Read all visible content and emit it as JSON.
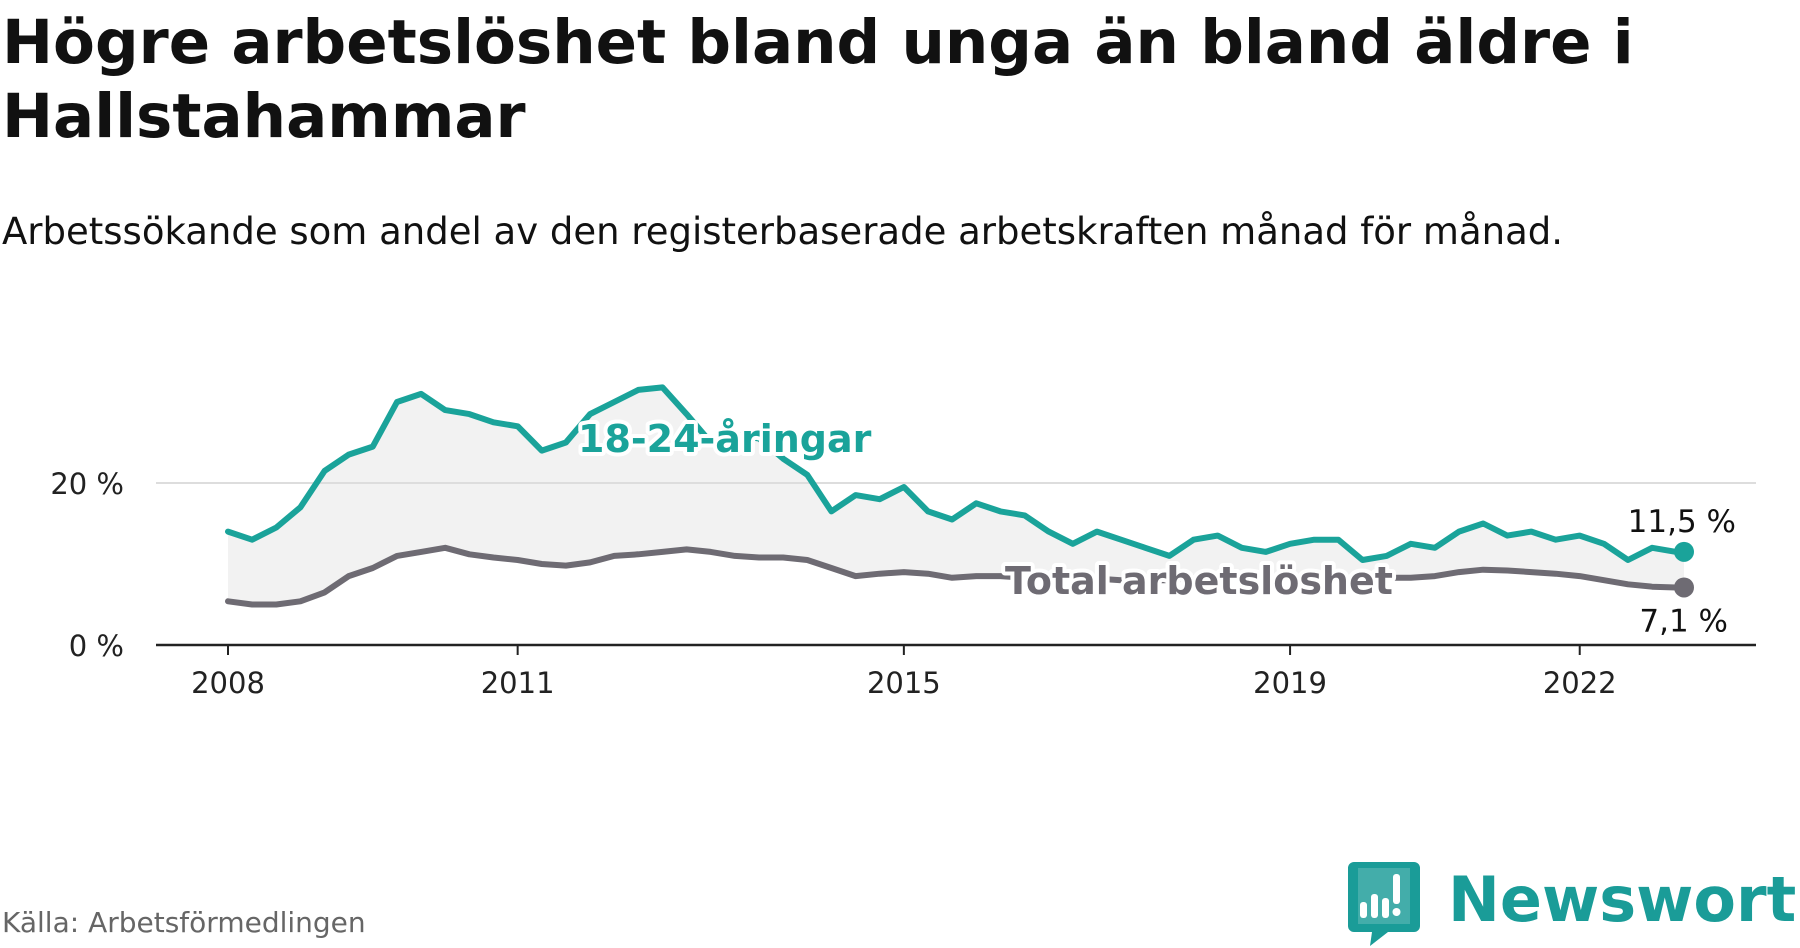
{
  "title": "Högre arbetslöshet bland unga än bland äldre i Hallstahammar",
  "subtitle": "Arbetssökande som andel av den registerbaserade arbetskraften månad för månad.",
  "source": "Källa: Arbetsförmedlingen",
  "logo": {
    "text": "Newsworthy",
    "icon": "newsworthy-logo-icon"
  },
  "colors": {
    "youth": "#1aa39a",
    "total": "#6e6b73",
    "band": "#f2f2f2",
    "grid": "#dddddd",
    "axis": "#222222"
  },
  "chart_data": {
    "type": "line",
    "title": "Högre arbetslöshet bland unga än bland äldre i Hallstahammar",
    "xlabel": "",
    "ylabel": "",
    "xlim": [
      2008,
      2023.6
    ],
    "ylim": [
      0,
      30
    ],
    "x_ticks": [
      {
        "value": 2008,
        "label": "2008"
      },
      {
        "value": 2011,
        "label": "2011"
      },
      {
        "value": 2015,
        "label": "2015"
      },
      {
        "value": 2019,
        "label": "2019"
      },
      {
        "value": 2022,
        "label": "2022"
      }
    ],
    "y_ticks": [
      {
        "value": 0,
        "label": "0 %"
      },
      {
        "value": 20,
        "label": "20 %"
      }
    ],
    "series": [
      {
        "name": "18-24-åringar",
        "label": "18-24-åringar",
        "end_label": "11,5 %",
        "x": [
          2008.0,
          2008.25,
          2008.5,
          2008.75,
          2009.0,
          2009.25,
          2009.5,
          2009.75,
          2010.0,
          2010.25,
          2010.5,
          2010.75,
          2011.0,
          2011.25,
          2011.5,
          2011.75,
          2012.0,
          2012.25,
          2012.5,
          2012.75,
          2013.0,
          2013.25,
          2013.5,
          2013.75,
          2014.0,
          2014.25,
          2014.5,
          2014.75,
          2015.0,
          2015.25,
          2015.5,
          2015.75,
          2016.0,
          2016.25,
          2016.5,
          2016.75,
          2017.0,
          2017.25,
          2017.5,
          2017.75,
          2018.0,
          2018.25,
          2018.5,
          2018.75,
          2019.0,
          2019.25,
          2019.5,
          2019.75,
          2020.0,
          2020.25,
          2020.5,
          2020.75,
          2021.0,
          2021.25,
          2021.5,
          2021.75,
          2022.0,
          2022.25,
          2022.5,
          2022.75,
          2023.0,
          2023.08
        ],
        "values": [
          14.0,
          13.0,
          14.5,
          17.0,
          21.5,
          23.5,
          24.5,
          30.0,
          31.0,
          29.0,
          28.5,
          27.5,
          27.0,
          24.0,
          25.0,
          28.5,
          30.0,
          31.5,
          31.8,
          28.5,
          25.0,
          26.0,
          25.5,
          23.0,
          21.0,
          16.5,
          18.5,
          18.0,
          19.5,
          16.5,
          15.5,
          17.5,
          16.5,
          16.0,
          14.0,
          12.5,
          14.0,
          13.0,
          12.0,
          11.0,
          13.0,
          13.5,
          12.0,
          11.5,
          12.5,
          13.0,
          13.0,
          10.5,
          11.0,
          12.5,
          12.0,
          14.0,
          15.0,
          13.5,
          14.0,
          13.0,
          13.5,
          12.5,
          10.5,
          12.0,
          11.5,
          11.5
        ]
      },
      {
        "name": "Total arbetslöshet",
        "label": "Total arbetslöshet",
        "end_label": "7,1 %",
        "x": [
          2008.0,
          2008.25,
          2008.5,
          2008.75,
          2009.0,
          2009.25,
          2009.5,
          2009.75,
          2010.0,
          2010.25,
          2010.5,
          2010.75,
          2011.0,
          2011.25,
          2011.5,
          2011.75,
          2012.0,
          2012.25,
          2012.5,
          2012.75,
          2013.0,
          2013.25,
          2013.5,
          2013.75,
          2014.0,
          2014.25,
          2014.5,
          2014.75,
          2015.0,
          2015.25,
          2015.5,
          2015.75,
          2016.0,
          2016.25,
          2016.5,
          2016.75,
          2017.0,
          2017.25,
          2017.5,
          2017.75,
          2018.0,
          2018.25,
          2018.5,
          2018.75,
          2019.0,
          2019.25,
          2019.5,
          2019.75,
          2020.0,
          2020.25,
          2020.5,
          2020.75,
          2021.0,
          2021.25,
          2021.5,
          2021.75,
          2022.0,
          2022.25,
          2022.5,
          2022.75,
          2023.0,
          2023.08
        ],
        "values": [
          5.4,
          5.0,
          5.0,
          5.4,
          6.5,
          8.5,
          9.5,
          11.0,
          11.5,
          12.0,
          11.2,
          10.8,
          10.5,
          10.0,
          9.8,
          10.2,
          11.0,
          11.2,
          11.5,
          11.8,
          11.5,
          11.0,
          10.8,
          10.8,
          10.5,
          9.5,
          8.5,
          8.8,
          9.0,
          8.8,
          8.3,
          8.5,
          8.5,
          8.3,
          8.3,
          8.2,
          8.2,
          8.0,
          8.0,
          8.0,
          8.3,
          8.5,
          8.3,
          8.2,
          8.3,
          8.2,
          8.2,
          8.2,
          8.3,
          8.3,
          8.5,
          9.0,
          9.3,
          9.2,
          9.0,
          8.8,
          8.5,
          8.0,
          7.5,
          7.2,
          7.1,
          7.1
        ]
      }
    ]
  }
}
